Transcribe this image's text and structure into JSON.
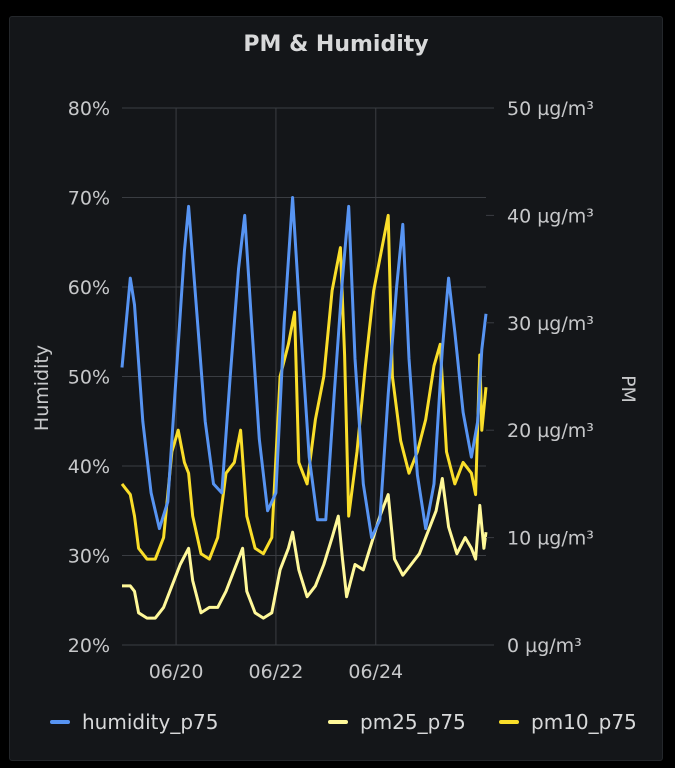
{
  "panel": {
    "title": "PM & Humidity"
  },
  "chart_data": {
    "type": "line",
    "title": "PM & Humidity",
    "x": {
      "domain": [
        "2024-06-18T22:00",
        "2024-06-26T05:00"
      ],
      "ticks": [
        {
          "t": "2024-06-20T00:00",
          "label": "06/20"
        },
        {
          "t": "2024-06-22T00:00",
          "label": "06/22"
        },
        {
          "t": "2024-06-24T00:00",
          "label": "06/24"
        }
      ]
    },
    "y_left": {
      "label": "Humidity",
      "range": [
        20,
        80
      ],
      "ticks": [
        {
          "v": 20,
          "label": "20%"
        },
        {
          "v": 30,
          "label": "30%"
        },
        {
          "v": 40,
          "label": "40%"
        },
        {
          "v": 50,
          "label": "50%"
        },
        {
          "v": 60,
          "label": "60%"
        },
        {
          "v": 70,
          "label": "70%"
        },
        {
          "v": 80,
          "label": "80%"
        }
      ]
    },
    "y_right": {
      "label": "PM",
      "range": [
        0,
        50
      ],
      "ticks": [
        {
          "v": 0,
          "label": "0 µg/m³"
        },
        {
          "v": 10,
          "label": "10 µg/m³"
        },
        {
          "v": 20,
          "label": "20 µg/m³"
        },
        {
          "v": 30,
          "label": "30 µg/m³"
        },
        {
          "v": 40,
          "label": "40 µg/m³"
        },
        {
          "v": 50,
          "label": "50 µg/m³"
        }
      ]
    },
    "grid": true,
    "legend": "bottom",
    "series": [
      {
        "name": "humidity_p75",
        "axis": "left",
        "color": "#5794f2",
        "points": [
          [
            "2024-06-18T22:00",
            51
          ],
          [
            "2024-06-19T02:00",
            61
          ],
          [
            "2024-06-19T04:00",
            58
          ],
          [
            "2024-06-19T08:00",
            45
          ],
          [
            "2024-06-19T12:00",
            37
          ],
          [
            "2024-06-19T16:00",
            33
          ],
          [
            "2024-06-19T20:00",
            36
          ],
          [
            "2024-06-20T00:00",
            50
          ],
          [
            "2024-06-20T04:00",
            64
          ],
          [
            "2024-06-20T06:00",
            69
          ],
          [
            "2024-06-20T10:00",
            57
          ],
          [
            "2024-06-20T14:00",
            45
          ],
          [
            "2024-06-20T18:00",
            38
          ],
          [
            "2024-06-20T22:00",
            37
          ],
          [
            "2024-06-21T02:00",
            50
          ],
          [
            "2024-06-21T06:00",
            62
          ],
          [
            "2024-06-21T09:00",
            68
          ],
          [
            "2024-06-21T12:00",
            57
          ],
          [
            "2024-06-21T16:00",
            43
          ],
          [
            "2024-06-21T20:00",
            35
          ],
          [
            "2024-06-22T00:00",
            37
          ],
          [
            "2024-06-22T04:00",
            56
          ],
          [
            "2024-06-22T08:00",
            70
          ],
          [
            "2024-06-22T12:00",
            55
          ],
          [
            "2024-06-22T16:00",
            41
          ],
          [
            "2024-06-22T20:00",
            34
          ],
          [
            "2024-06-23T00:00",
            34
          ],
          [
            "2024-06-23T04:00",
            48
          ],
          [
            "2024-06-23T08:00",
            61
          ],
          [
            "2024-06-23T11:00",
            69
          ],
          [
            "2024-06-23T14:00",
            52
          ],
          [
            "2024-06-23T18:00",
            38
          ],
          [
            "2024-06-23T22:00",
            32
          ],
          [
            "2024-06-24T02:00",
            34
          ],
          [
            "2024-06-24T06:00",
            48
          ],
          [
            "2024-06-24T10:00",
            60
          ],
          [
            "2024-06-24T13:00",
            67
          ],
          [
            "2024-06-24T16:00",
            52
          ],
          [
            "2024-06-24T20:00",
            39
          ],
          [
            "2024-06-25T00:00",
            33
          ],
          [
            "2024-06-25T04:00",
            38
          ],
          [
            "2024-06-25T08:00",
            53
          ],
          [
            "2024-06-25T11:00",
            61
          ],
          [
            "2024-06-25T14:00",
            55
          ],
          [
            "2024-06-25T18:00",
            46
          ],
          [
            "2024-06-25T22:00",
            41
          ],
          [
            "2024-06-26T01:00",
            45
          ],
          [
            "2024-06-26T03:00",
            53
          ],
          [
            "2024-06-26T05:00",
            57
          ]
        ]
      },
      {
        "name": "pm25_p75",
        "axis": "right",
        "color": "#fff899",
        "points": [
          [
            "2024-06-18T22:00",
            5.5
          ],
          [
            "2024-06-19T02:00",
            5.5
          ],
          [
            "2024-06-19T04:00",
            5
          ],
          [
            "2024-06-19T06:00",
            3
          ],
          [
            "2024-06-19T10:00",
            2.5
          ],
          [
            "2024-06-19T14:00",
            2.5
          ],
          [
            "2024-06-19T18:00",
            3.5
          ],
          [
            "2024-06-19T22:00",
            5.5
          ],
          [
            "2024-06-20T02:00",
            7.5
          ],
          [
            "2024-06-20T06:00",
            9
          ],
          [
            "2024-06-20T08:00",
            6
          ],
          [
            "2024-06-20T12:00",
            3
          ],
          [
            "2024-06-20T16:00",
            3.5
          ],
          [
            "2024-06-20T20:00",
            3.5
          ],
          [
            "2024-06-21T00:00",
            5
          ],
          [
            "2024-06-21T04:00",
            7
          ],
          [
            "2024-06-21T08:00",
            9
          ],
          [
            "2024-06-21T10:00",
            5
          ],
          [
            "2024-06-21T14:00",
            3
          ],
          [
            "2024-06-21T18:00",
            2.5
          ],
          [
            "2024-06-21T22:00",
            3
          ],
          [
            "2024-06-22T02:00",
            7
          ],
          [
            "2024-06-22T06:00",
            9
          ],
          [
            "2024-06-22T08:00",
            10.5
          ],
          [
            "2024-06-22T11:00",
            7
          ],
          [
            "2024-06-22T15:00",
            4.5
          ],
          [
            "2024-06-22T19:00",
            5.5
          ],
          [
            "2024-06-22T23:00",
            7.5
          ],
          [
            "2024-06-23T03:00",
            10
          ],
          [
            "2024-06-23T06:00",
            12
          ],
          [
            "2024-06-23T08:00",
            8
          ],
          [
            "2024-06-23T10:00",
            4.5
          ],
          [
            "2024-06-23T14:00",
            7.5
          ],
          [
            "2024-06-23T18:00",
            7
          ],
          [
            "2024-06-23T22:00",
            9.5
          ],
          [
            "2024-06-24T02:00",
            12
          ],
          [
            "2024-06-24T06:00",
            14
          ],
          [
            "2024-06-24T09:00",
            8
          ],
          [
            "2024-06-24T13:00",
            6.5
          ],
          [
            "2024-06-24T17:00",
            7.5
          ],
          [
            "2024-06-24T21:00",
            8.5
          ],
          [
            "2024-06-25T01:00",
            10.5
          ],
          [
            "2024-06-25T05:00",
            12.5
          ],
          [
            "2024-06-25T08:00",
            15.5
          ],
          [
            "2024-06-25T11:00",
            11
          ],
          [
            "2024-06-25T15:00",
            8.5
          ],
          [
            "2024-06-25T19:00",
            10
          ],
          [
            "2024-06-25T22:00",
            9
          ],
          [
            "2024-06-26T00:00",
            8
          ],
          [
            "2024-06-26T02:00",
            13
          ],
          [
            "2024-06-26T04:00",
            9
          ],
          [
            "2024-06-26T05:00",
            10.5
          ]
        ]
      },
      {
        "name": "pm10_p75",
        "axis": "right",
        "color": "#fade2a",
        "points": [
          [
            "2024-06-18T22:00",
            15
          ],
          [
            "2024-06-19T02:00",
            14
          ],
          [
            "2024-06-19T04:00",
            12
          ],
          [
            "2024-06-19T06:00",
            9
          ],
          [
            "2024-06-19T10:00",
            8
          ],
          [
            "2024-06-19T14:00",
            8
          ],
          [
            "2024-06-19T18:00",
            10
          ],
          [
            "2024-06-19T22:00",
            18
          ],
          [
            "2024-06-20T01:00",
            20
          ],
          [
            "2024-06-20T04:00",
            17
          ],
          [
            "2024-06-20T06:00",
            16
          ],
          [
            "2024-06-20T08:00",
            12
          ],
          [
            "2024-06-20T12:00",
            8.5
          ],
          [
            "2024-06-20T16:00",
            8
          ],
          [
            "2024-06-20T20:00",
            10
          ],
          [
            "2024-06-21T00:00",
            16
          ],
          [
            "2024-06-21T04:00",
            17
          ],
          [
            "2024-06-21T07:00",
            20
          ],
          [
            "2024-06-21T10:00",
            12
          ],
          [
            "2024-06-21T14:00",
            9
          ],
          [
            "2024-06-21T18:00",
            8.5
          ],
          [
            "2024-06-21T22:00",
            10
          ],
          [
            "2024-06-22T02:00",
            25
          ],
          [
            "2024-06-22T06:00",
            28
          ],
          [
            "2024-06-22T09:00",
            31
          ],
          [
            "2024-06-22T11:00",
            17
          ],
          [
            "2024-06-22T15:00",
            15
          ],
          [
            "2024-06-22T19:00",
            21
          ],
          [
            "2024-06-22T23:00",
            25
          ],
          [
            "2024-06-23T03:00",
            33
          ],
          [
            "2024-06-23T07:00",
            37
          ],
          [
            "2024-06-23T09:00",
            27
          ],
          [
            "2024-06-23T11:00",
            12
          ],
          [
            "2024-06-23T15:00",
            18
          ],
          [
            "2024-06-23T19:00",
            26
          ],
          [
            "2024-06-23T23:00",
            33
          ],
          [
            "2024-06-24T03:00",
            37
          ],
          [
            "2024-06-24T06:00",
            40
          ],
          [
            "2024-06-24T08:00",
            25
          ],
          [
            "2024-06-24T12:00",
            19
          ],
          [
            "2024-06-24T16:00",
            16
          ],
          [
            "2024-06-24T20:00",
            18
          ],
          [
            "2024-06-25T00:00",
            21
          ],
          [
            "2024-06-25T04:00",
            26
          ],
          [
            "2024-06-25T07:00",
            28
          ],
          [
            "2024-06-25T10:00",
            18
          ],
          [
            "2024-06-25T14:00",
            15
          ],
          [
            "2024-06-25T18:00",
            17
          ],
          [
            "2024-06-25T22:00",
            16
          ],
          [
            "2024-06-26T00:00",
            14
          ],
          [
            "2024-06-26T02:00",
            27
          ],
          [
            "2024-06-26T03:00",
            20
          ],
          [
            "2024-06-26T05:00",
            24
          ]
        ]
      }
    ]
  },
  "legend": [
    {
      "name": "humidity_p75",
      "color": "#5794f2"
    },
    {
      "name": "pm25_p75",
      "color": "#fff899"
    },
    {
      "name": "pm10_p75",
      "color": "#fade2a"
    }
  ]
}
